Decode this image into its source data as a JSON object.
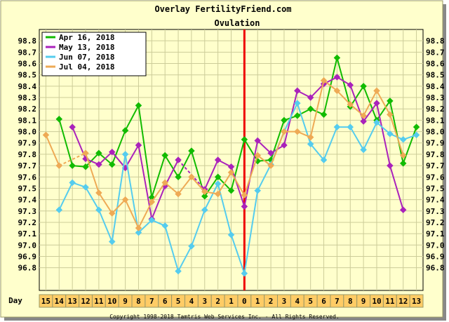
{
  "chart_data": {
    "type": "line",
    "title": "Overlay FertilityFriend.com",
    "subtitle": "Ovulation",
    "copyright": "Copyright 1998-2018 Tamtris Web Services Inc. - All Rights Reserved.",
    "xlabel": "Day",
    "ylabel": "",
    "categories": [
      "15",
      "14",
      "13",
      "12",
      "11",
      "10",
      "9",
      "8",
      "7",
      "6",
      "5",
      "4",
      "3",
      "2",
      "1",
      "0",
      "1",
      "2",
      "3",
      "4",
      "5",
      "6",
      "7",
      "8",
      "9",
      "10",
      "11",
      "12",
      "13"
    ],
    "ovulation_index": 15,
    "ylim": [
      96.6,
      98.9
    ],
    "yticks": [
      "98.8",
      "98.7",
      "98.6",
      "98.5",
      "98.4",
      "98.3",
      "98.2",
      "98.1",
      "98.0",
      "97.9",
      "97.8",
      "97.7",
      "97.6",
      "97.5",
      "97.4",
      "97.3",
      "97.2",
      "97.1",
      "97.0",
      "96.9",
      "96.8"
    ],
    "grid": true,
    "legend_position": "top-left",
    "background_color": "#ffffcc",
    "grid_color": "#cccc99",
    "ovulation_color": "#ee0000",
    "series": [
      {
        "name": "Apr 16, 2018",
        "color": "#11bb00",
        "values": [
          null,
          98.11,
          97.7,
          97.69,
          97.81,
          97.71,
          98.01,
          98.23,
          97.42,
          97.79,
          97.6,
          97.83,
          97.43,
          97.6,
          97.48,
          97.93,
          97.74,
          97.75,
          98.1,
          98.14,
          98.2,
          98.15,
          98.65,
          98.22,
          98.4,
          98.1,
          98.27,
          97.72,
          98.04
        ],
        "dashed_after": []
      },
      {
        "name": "May 13, 2018",
        "color": "#aa22bb",
        "values": [
          null,
          null,
          98.04,
          97.76,
          97.71,
          97.82,
          97.68,
          97.88,
          97.23,
          97.52,
          97.75,
          null,
          97.49,
          97.75,
          97.69,
          97.34,
          97.92,
          97.81,
          97.88,
          98.36,
          98.3,
          98.42,
          98.48,
          98.41,
          98.09,
          98.25,
          97.7,
          97.31,
          null
        ],
        "dashed_after": [
          10
        ]
      },
      {
        "name": "Jun 07, 2018",
        "color": "#55ccee",
        "values": [
          null,
          97.31,
          97.55,
          97.51,
          97.31,
          97.03,
          97.8,
          97.11,
          97.22,
          97.17,
          96.77,
          96.99,
          97.31,
          97.54,
          97.09,
          96.75,
          97.48,
          97.71,
          98.0,
          98.25,
          97.89,
          97.75,
          98.04,
          98.04,
          97.84,
          98.08,
          97.98,
          97.93,
          97.97
        ],
        "dashed_after": []
      },
      {
        "name": "Jul 04, 2018",
        "color": "#eeaa55",
        "values": [
          97.97,
          97.7,
          null,
          97.81,
          97.46,
          97.28,
          97.4,
          97.15,
          97.38,
          97.55,
          97.45,
          97.6,
          97.47,
          97.45,
          97.64,
          97.44,
          97.79,
          97.7,
          98.0,
          98.0,
          97.95,
          98.45,
          98.36,
          98.24,
          98.14,
          98.36,
          98.15,
          97.79,
          null
        ],
        "dashed_after": [
          1
        ]
      }
    ]
  }
}
